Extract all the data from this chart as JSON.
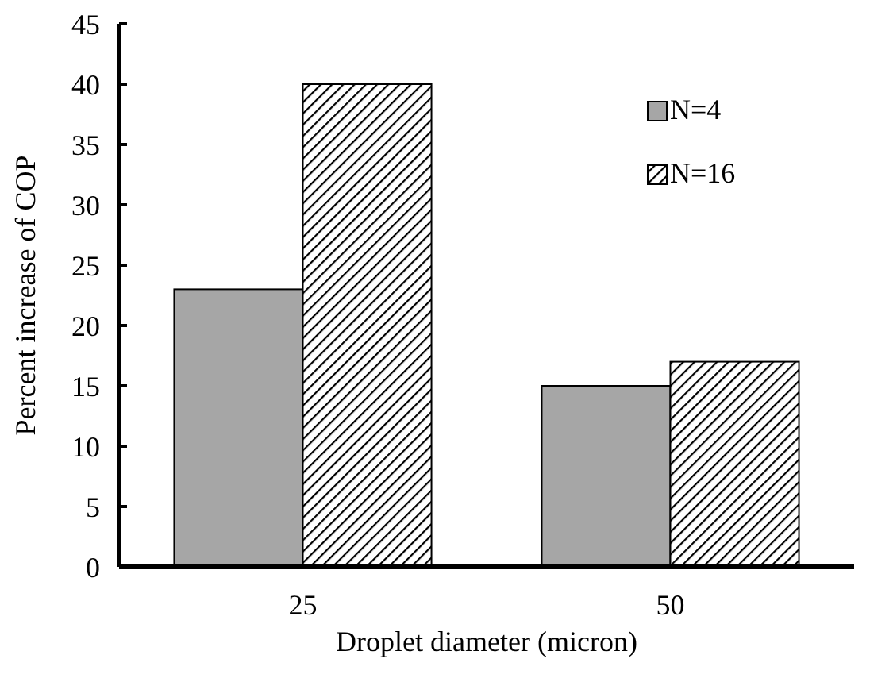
{
  "chart_data": {
    "type": "bar",
    "xlabel": "Droplet diameter (micron)",
    "ylabel": "Percent increase of COP",
    "categories": [
      "25",
      "50"
    ],
    "series": [
      {
        "name": "N=4",
        "color": "#a6a6a6",
        "values": [
          23,
          15
        ]
      },
      {
        "name": "N=16",
        "color": "#000000",
        "values": [
          40,
          17
        ]
      }
    ],
    "ylim": [
      0,
      45
    ],
    "yticks": [
      0,
      5,
      10,
      15,
      20,
      25,
      30,
      35,
      40,
      45
    ],
    "grid": false,
    "legend": "top right"
  }
}
